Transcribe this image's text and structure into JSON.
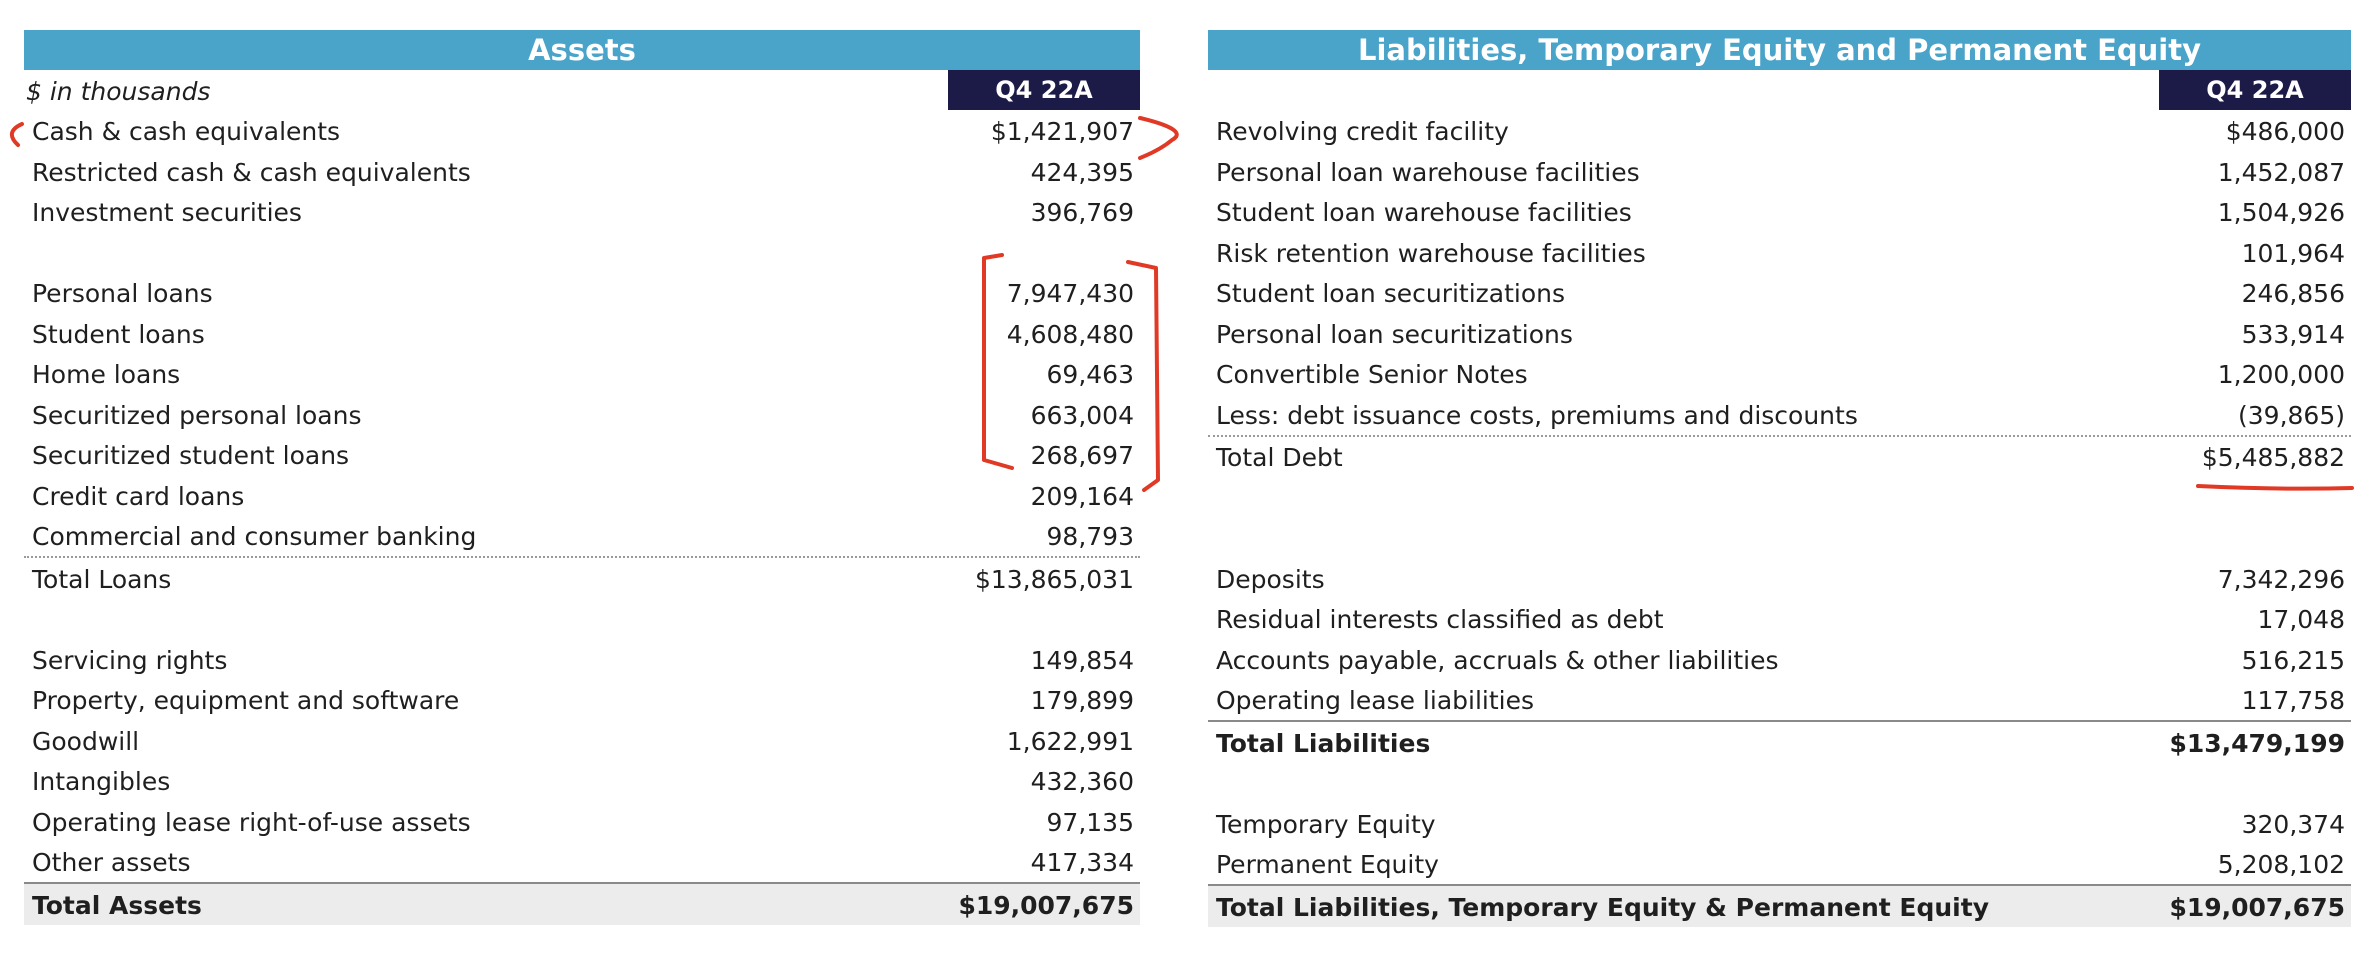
{
  "assets": {
    "header": "Assets",
    "units_label": "$ in thousands",
    "period": "Q4 22A",
    "rows": [
      {
        "label": "Cash & cash equivalents",
        "value": "$1,421,907"
      },
      {
        "label": "Restricted cash & cash equivalents",
        "value": "424,395"
      },
      {
        "label": "Investment securities",
        "value": "396,769"
      },
      {
        "label": "",
        "value": ""
      },
      {
        "label": "Personal loans",
        "value": "7,947,430"
      },
      {
        "label": "Student loans",
        "value": "4,608,480"
      },
      {
        "label": "Home loans",
        "value": "69,463"
      },
      {
        "label": "Securitized personal loans",
        "value": "663,004"
      },
      {
        "label": "Securitized student loans",
        "value": "268,697"
      },
      {
        "label": "Credit card loans",
        "value": "209,164"
      },
      {
        "label": "Commercial and consumer banking",
        "value": "98,793"
      },
      {
        "label": "Total Loans",
        "value": "$13,865,031"
      },
      {
        "label": "",
        "value": ""
      },
      {
        "label": "Servicing rights",
        "value": "149,854"
      },
      {
        "label": "Property, equipment and software",
        "value": "179,899"
      },
      {
        "label": "Goodwill",
        "value": "1,622,991"
      },
      {
        "label": "Intangibles",
        "value": "432,360"
      },
      {
        "label": "Operating lease right-of-use assets",
        "value": "97,135"
      },
      {
        "label": "Other assets",
        "value": "417,334"
      },
      {
        "label": "Total Assets",
        "value": "$19,007,675"
      }
    ]
  },
  "liabilities": {
    "header": "Liabilities, Temporary Equity and Permanent Equity",
    "period": "Q4 22A",
    "rows": [
      {
        "label": "Revolving credit facility",
        "value": "$486,000"
      },
      {
        "label": "Personal loan warehouse facilities",
        "value": "1,452,087"
      },
      {
        "label": "Student loan warehouse facilities",
        "value": "1,504,926"
      },
      {
        "label": "Risk retention warehouse facilities",
        "value": "101,964"
      },
      {
        "label": "Student loan securitizations",
        "value": "246,856"
      },
      {
        "label": "Personal loan securitizations",
        "value": "533,914"
      },
      {
        "label": "Convertible Senior Notes",
        "value": "1,200,000"
      },
      {
        "label": "Less: debt issuance costs, premiums and discounts",
        "value": "(39,865)"
      },
      {
        "label": "Total Debt",
        "value": "$5,485,882"
      },
      {
        "label": "",
        "value": ""
      },
      {
        "label": "Deposits",
        "value": "7,342,296"
      },
      {
        "label": "Residual interests classified as debt",
        "value": "17,048"
      },
      {
        "label": "Accounts payable, accruals & other liabilities",
        "value": "516,215"
      },
      {
        "label": "Operating lease liabilities",
        "value": "117,758"
      },
      {
        "label": "Total Liabilities",
        "value": "$13,479,199"
      },
      {
        "label": "",
        "value": ""
      },
      {
        "label": "Temporary Equity",
        "value": "320,374"
      },
      {
        "label": "Permanent Equity",
        "value": "5,208,102"
      },
      {
        "label": "Total Liabilities, Temporary Equity & Permanent Equity",
        "value": "$19,007,675"
      }
    ]
  },
  "annotation_color": "#e03a26"
}
